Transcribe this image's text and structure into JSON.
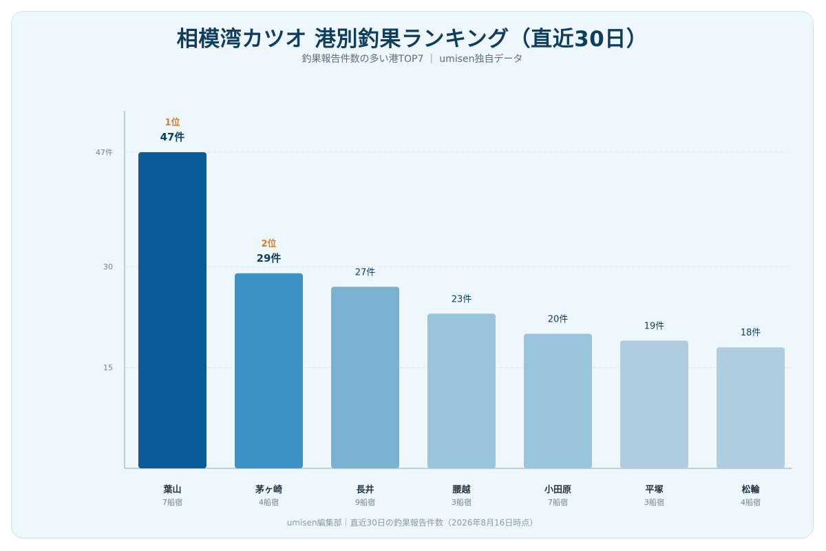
{
  "header": {
    "title": "相模湾カツオ 港別釣果ランキング（直近30日）",
    "subtitle": "釣果報告件数の多い港TOP7 ｜ umisen独自データ"
  },
  "footer": {
    "source": "umisen編集部｜直近30日の釣果報告件数（2026年8月16日時点）"
  },
  "colors": {
    "rank1": "#0b5a99",
    "rank2": "#3d93c8",
    "rank3": "#7bb2d1",
    "rank4": "#98c4dc",
    "rank5": "#98c4dc",
    "rank6": "#b0cde0",
    "rank7": "#b0cde0",
    "rank_label": "#e07b1f",
    "value_label": "#0f3d5e"
  },
  "chart_data": {
    "type": "bar",
    "categories": [
      "葉山",
      "茅ヶ崎",
      "長井",
      "腰越",
      "小田原",
      "平塚",
      "松輪"
    ],
    "sublabels": [
      "7船宿",
      "4船宿",
      "9船宿",
      "3船宿",
      "7船宿",
      "3船宿",
      "4船宿"
    ],
    "values": [
      47,
      29,
      27,
      23,
      20,
      19,
      18
    ],
    "value_labels": [
      "47件",
      "29件",
      "27件",
      "23件",
      "20件",
      "19件",
      "18件"
    ],
    "rank_labels": [
      "1位",
      "2位",
      "",
      "",
      "",
      "",
      ""
    ],
    "yticks": [
      {
        "value": 15,
        "label": "15"
      },
      {
        "value": 30,
        "label": "30"
      },
      {
        "value": 47,
        "label": "47件"
      }
    ],
    "ylim": [
      0,
      47
    ],
    "grid": true,
    "xlabel": "",
    "ylabel": ""
  }
}
